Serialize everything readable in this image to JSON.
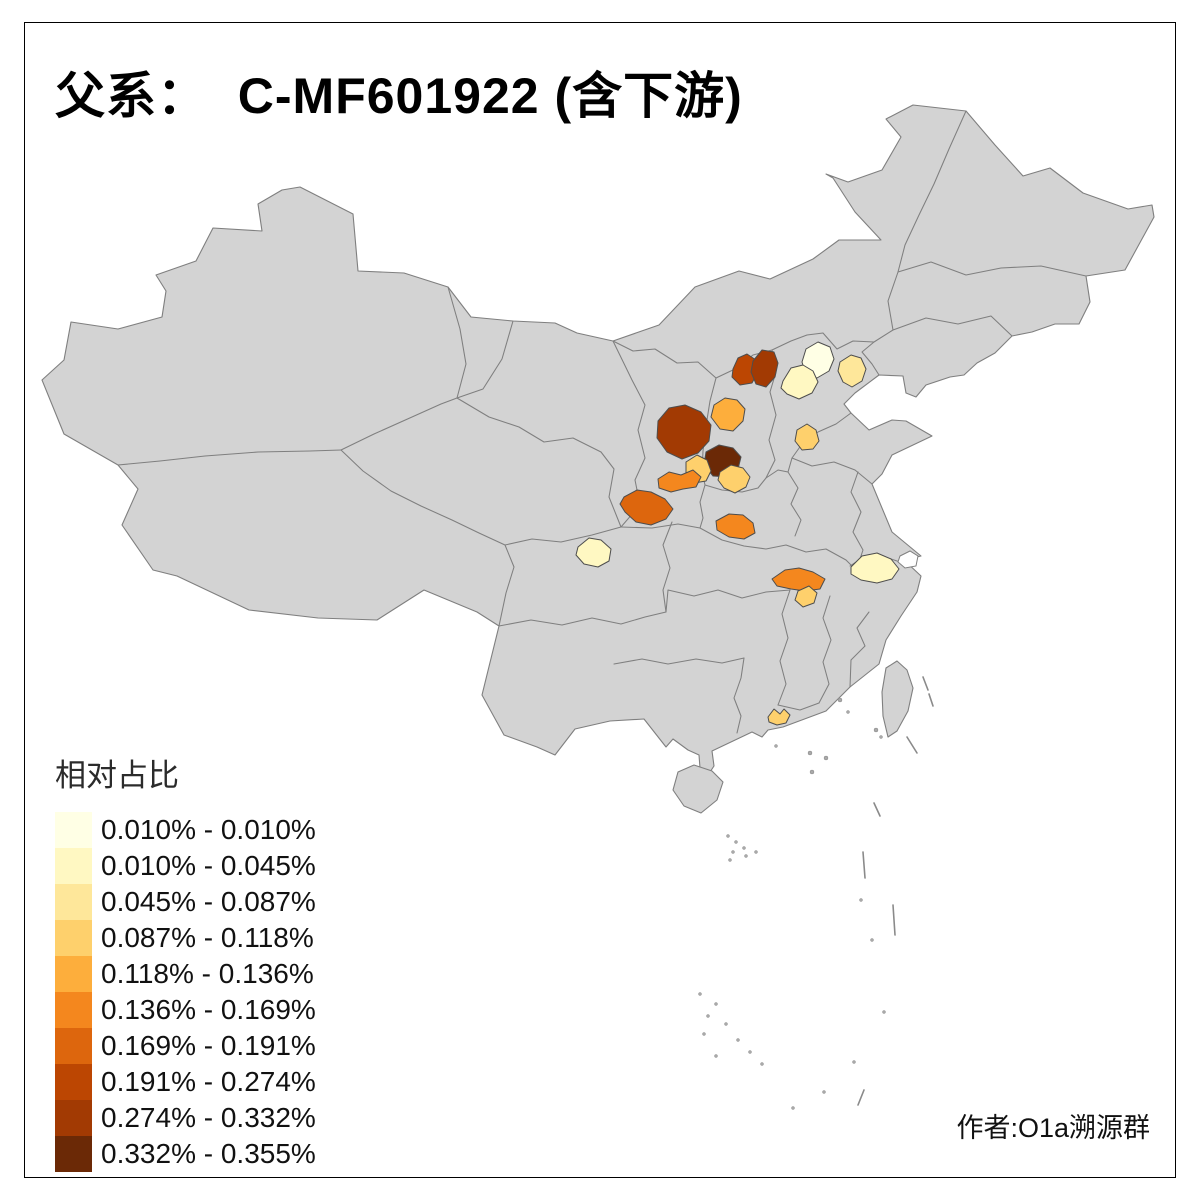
{
  "title": {
    "text": "父系：  C-MF601922 (含下游)"
  },
  "author": {
    "credit": "作者:O1a溯源群"
  },
  "legend": {
    "title": "相对占比",
    "classes": [
      {
        "label": "0.010% - 0.010%",
        "color": "#FFFFE5"
      },
      {
        "label": "0.010% - 0.045%",
        "color": "#FFF8C2"
      },
      {
        "label": "0.045% - 0.087%",
        "color": "#FEE79A"
      },
      {
        "label": "0.087% - 0.118%",
        "color": "#FED06C"
      },
      {
        "label": "0.118% - 0.136%",
        "color": "#FDAE3C"
      },
      {
        "label": "0.136% - 0.169%",
        "color": "#F4871E"
      },
      {
        "label": "0.169% - 0.191%",
        "color": "#DD660D"
      },
      {
        "label": "0.191% - 0.274%",
        "color": "#BC4602"
      },
      {
        "label": "0.274% - 0.332%",
        "color": "#A23A03"
      },
      {
        "label": "0.332% - 0.355%",
        "color": "#6B2906"
      }
    ]
  },
  "map": {
    "colors": {
      "land": "#D3D3D3",
      "province_border": "#7F7F7F",
      "region_stroke": "#4D4D4D",
      "frame": "#000000",
      "background": "#FFFFFF"
    },
    "regions": [
      {
        "id": "beijing",
        "class_index": 0,
        "value_range": "0.010% - 0.010%"
      },
      {
        "id": "baoding",
        "class_index": 1,
        "value_range": "0.010% - 0.045%"
      },
      {
        "id": "chengdu",
        "class_index": 1,
        "value_range": "0.010% - 0.045%"
      },
      {
        "id": "xuancheng",
        "class_index": 1,
        "value_range": "0.010% - 0.045%"
      },
      {
        "id": "tangshan",
        "class_index": 2,
        "value_range": "0.045% - 0.087%"
      },
      {
        "id": "yanan",
        "class_index": 3,
        "value_range": "0.087% - 0.118%"
      },
      {
        "id": "yuncheng",
        "class_index": 3,
        "value_range": "0.087% - 0.118%"
      },
      {
        "id": "liaocheng",
        "class_index": 3,
        "value_range": "0.087% - 0.118%"
      },
      {
        "id": "jiujiang",
        "class_index": 3,
        "value_range": "0.087% - 0.118%"
      },
      {
        "id": "zhuhai",
        "class_index": 3,
        "value_range": "0.087% - 0.118%"
      },
      {
        "id": "xinzhou",
        "class_index": 4,
        "value_range": "0.118% - 0.136%"
      },
      {
        "id": "xianyang",
        "class_index": 5,
        "value_range": "0.136% - 0.169%"
      },
      {
        "id": "xiangyang",
        "class_index": 5,
        "value_range": "0.136% - 0.169%"
      },
      {
        "id": "huanggang",
        "class_index": 5,
        "value_range": "0.136% - 0.169%"
      },
      {
        "id": "hanzhong",
        "class_index": 6,
        "value_range": "0.169% - 0.191%"
      },
      {
        "id": "shuozhou",
        "class_index": 7,
        "value_range": "0.191% - 0.274%"
      },
      {
        "id": "datong",
        "class_index": 8,
        "value_range": "0.274% - 0.332%"
      },
      {
        "id": "yulin",
        "class_index": 8,
        "value_range": "0.274% - 0.332%"
      },
      {
        "id": "linfen",
        "class_index": 9,
        "value_range": "0.332% - 0.355%"
      }
    ]
  },
  "chart_data": {
    "type": "choropleth",
    "title": "父系：  C-MF601922 (含下游)",
    "legend_title": "相对占比",
    "bins": [
      "0.010% - 0.010%",
      "0.010% - 0.045%",
      "0.045% - 0.087%",
      "0.087% - 0.118%",
      "0.118% - 0.136%",
      "0.136% - 0.169%",
      "0.169% - 0.191%",
      "0.191% - 0.274%",
      "0.274% - 0.332%",
      "0.332% - 0.355%"
    ],
    "palette": [
      "#FFFFE5",
      "#FFF8C2",
      "#FEE79A",
      "#FED06C",
      "#FDAE3C",
      "#F4871E",
      "#DD660D",
      "#BC4602",
      "#A23A03",
      "#6B2906"
    ],
    "shaded_region_count": 19,
    "legend_position": "bottom-left"
  }
}
